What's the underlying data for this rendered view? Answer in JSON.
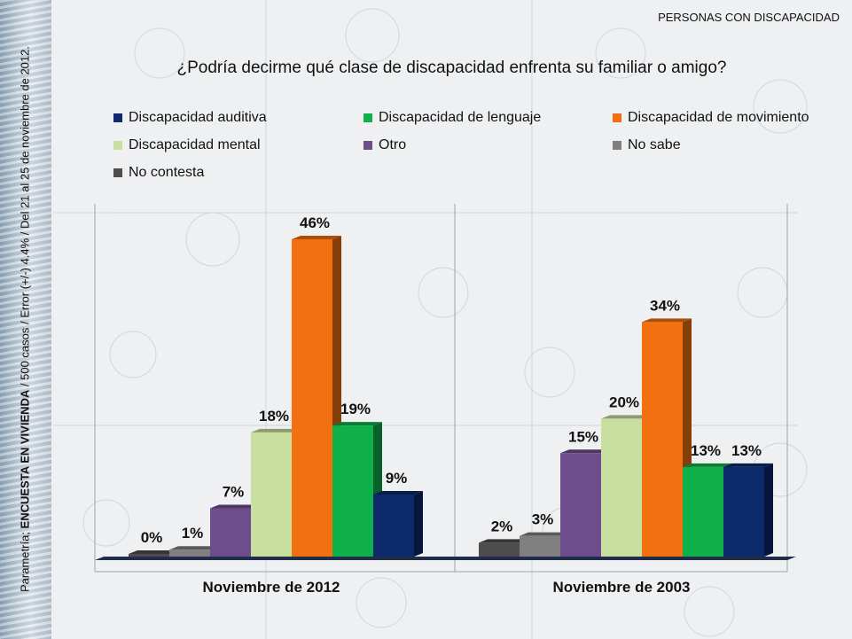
{
  "header": {
    "section": "PERSONAS CON DISCAPACIDAD",
    "side_note_prefix": "Parametría; ",
    "side_note_bold": "ENCUESTA EN VIVIENDA",
    "side_note_rest": " / 500 casos / Error (+/-) 4.4% / Del 21 al 25 de noviembre de 2012."
  },
  "chart_data": {
    "type": "bar",
    "title": "¿Podría decirme qué clase de discapacidad enfrenta su familiar o amigo?",
    "categories": [
      "Noviembre de 2012",
      "Noviembre de 2003"
    ],
    "ylim": [
      0,
      50
    ],
    "unit": "%",
    "legend_position": "top",
    "series": [
      {
        "name": "Discapacidad auditiva",
        "color": "#0d2a6b",
        "values": [
          9,
          13
        ]
      },
      {
        "name": "Discapacidad de lenguaje",
        "color": "#0fb04a",
        "values": [
          19,
          13
        ]
      },
      {
        "name": "Discapacidad de movimiento",
        "color": "#f2700f",
        "values": [
          46,
          34
        ]
      },
      {
        "name": "Discapacidad mental",
        "color": "#c9dfa0",
        "values": [
          18,
          20
        ]
      },
      {
        "name": "Otro",
        "color": "#6e4d8c",
        "values": [
          7,
          15
        ]
      },
      {
        "name": "No sabe",
        "color": "#808080",
        "values": [
          1,
          3
        ]
      },
      {
        "name": "No contesta",
        "color": "#4d4d4d",
        "values": [
          0,
          2
        ]
      }
    ],
    "bar_order": {
      "Noviembre de 2012": [
        "No contesta",
        "No sabe",
        "Otro",
        "Discapacidad mental",
        "Discapacidad de movimiento",
        "Discapacidad de lenguaje",
        "Discapacidad auditiva"
      ],
      "Noviembre de 2003": [
        "No contesta",
        "No sabe",
        "Otro",
        "Discapacidad mental",
        "Discapacidad de movimiento",
        "Discapacidad de lenguaje",
        "Discapacidad auditiva"
      ]
    }
  }
}
